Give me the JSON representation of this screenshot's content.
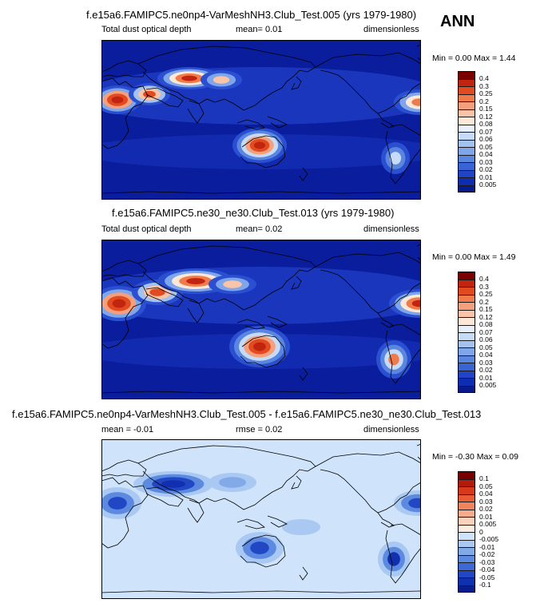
{
  "ann_label": "ANN",
  "colors": {
    "land": "#000000",
    "ocean_dark": "#0a1d9c",
    "diff_bg": "#cfe3fb"
  },
  "panels": [
    {
      "title": "f.e15a6.FAMIPC5.ne0np4-VarMeshNH3.Club_Test.005 (yrs 1979-1980)",
      "field": "Total dust optical depth",
      "stat": "mean=  0.01",
      "units": "dimensionless",
      "minmax": "Min =  0.00 Max =  1.44",
      "palette": "sequential"
    },
    {
      "title": "f.e15a6.FAMIPC5.ne30_ne30.Club_Test.013 (yrs 1979-1980)",
      "field": "Total dust optical depth",
      "stat": "mean=  0.02",
      "units": "dimensionless",
      "minmax": "Min =  0.00 Max =  1.49",
      "palette": "sequential"
    },
    {
      "title": "f.e15a6.FAMIPC5.ne0np4-VarMeshNH3.Club_Test.005 - f.e15a6.FAMIPC5.ne30_ne30.Club_Test.013",
      "field": "mean =  -0.01",
      "stat": "rmse =  0.02",
      "units": "dimensionless",
      "minmax": "Min = -0.30 Max =  0.09",
      "palette": "diverging"
    }
  ],
  "colorbars": {
    "sequential": {
      "labels": [
        "0.4",
        "0.3",
        "0.25",
        "0.2",
        "0.15",
        "0.12",
        "0.08",
        "0.07",
        "0.06",
        "0.05",
        "0.04",
        "0.03",
        "0.02",
        "0.01",
        "0.005"
      ],
      "colors": [
        "#7a0000",
        "#c1250f",
        "#e24a1f",
        "#f07a4a",
        "#f5a07c",
        "#fac4a8",
        "#fde8d8",
        "#e8f0fc",
        "#c6dbf7",
        "#a3c2f0",
        "#7fa6ea",
        "#5a86e0",
        "#3a63d6",
        "#2144c6",
        "#0f2db0",
        "#071a8e"
      ]
    },
    "diverging": {
      "labels": [
        "0.1",
        "0.05",
        "0.04",
        "0.03",
        "0.02",
        "0.01",
        "0.005",
        "0",
        "-0.005",
        "-0.01",
        "-0.02",
        "-0.03",
        "-0.04",
        "-0.05",
        "-0.1"
      ],
      "colors": [
        "#7a0000",
        "#b31c0c",
        "#d6391b",
        "#e85b34",
        "#f1845f",
        "#f6ab8c",
        "#fbd3bd",
        "#fdeee2",
        "#cfe3fb",
        "#a9c8f2",
        "#82aae9",
        "#5c8ae0",
        "#3c69d5",
        "#2247c4",
        "#1130b0",
        "#0a1d8c"
      ]
    }
  },
  "chart_data": [
    {
      "type": "heatmap",
      "title": "f.e15a6.FAMIPC5.ne0np4-VarMeshNH3.Club_Test.005 (yrs 1979-1980)",
      "variable": "Total dust optical depth",
      "mean": 0.01,
      "units": "dimensionless",
      "min": 0.0,
      "max": 1.44,
      "contour_levels": [
        0.005,
        0.01,
        0.02,
        0.03,
        0.04,
        0.05,
        0.06,
        0.07,
        0.08,
        0.12,
        0.15,
        0.2,
        0.25,
        0.3,
        0.4
      ],
      "projection": "cylindrical equidistant, Pacific-centered",
      "season": "ANN"
    },
    {
      "type": "heatmap",
      "title": "f.e15a6.FAMIPC5.ne30_ne30.Club_Test.013 (yrs 1979-1980)",
      "variable": "Total dust optical depth",
      "mean": 0.02,
      "units": "dimensionless",
      "min": 0.0,
      "max": 1.49,
      "contour_levels": [
        0.005,
        0.01,
        0.02,
        0.03,
        0.04,
        0.05,
        0.06,
        0.07,
        0.08,
        0.12,
        0.15,
        0.2,
        0.25,
        0.3,
        0.4
      ],
      "projection": "cylindrical equidistant, Pacific-centered",
      "season": "ANN"
    },
    {
      "type": "heatmap",
      "title": "f.e15a6.FAMIPC5.ne0np4-VarMeshNH3.Club_Test.005 - f.e15a6.FAMIPC5.ne30_ne30.Club_Test.013",
      "mean": -0.01,
      "rmse": 0.02,
      "units": "dimensionless",
      "min": -0.3,
      "max": 0.09,
      "contour_levels": [
        -0.1,
        -0.05,
        -0.04,
        -0.03,
        -0.02,
        -0.01,
        -0.005,
        0,
        0.005,
        0.01,
        0.02,
        0.03,
        0.04,
        0.05,
        0.1
      ],
      "projection": "cylindrical equidistant, Pacific-centered",
      "season": "ANN"
    }
  ]
}
